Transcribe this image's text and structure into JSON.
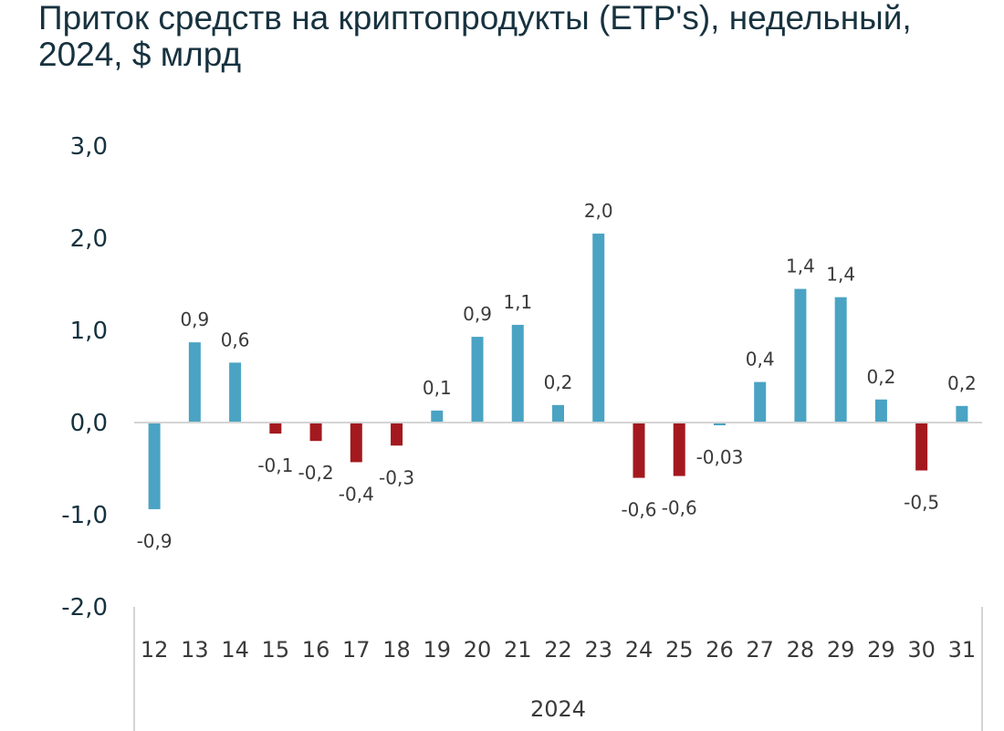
{
  "chart_data": {
    "type": "bar",
    "title": "Приток средств на криптопродукты (ETP's), недельный, 2024, $ млрд",
    "categories": [
      "12",
      "13",
      "14",
      "15",
      "16",
      "17",
      "18",
      "19",
      "20",
      "21",
      "22",
      "23",
      "24",
      "25",
      "26",
      "27",
      "28",
      "29",
      "29",
      "30",
      "31"
    ],
    "group_label": "2024",
    "values": [
      -0.94,
      0.87,
      0.65,
      -0.12,
      -0.2,
      -0.43,
      -0.25,
      0.13,
      0.93,
      1.06,
      0.19,
      2.05,
      -0.6,
      -0.58,
      -0.03,
      0.44,
      1.45,
      1.36,
      0.25,
      -0.52,
      0.18
    ],
    "data_labels": [
      "-0,9",
      "0,9",
      "0,6",
      "-0,1",
      "-0,2",
      "-0,4",
      "-0,3",
      "0,1",
      "0,9",
      "1,1",
      "0,2",
      "2,0",
      "-0,6",
      "-0,6",
      "-0,03",
      "0,4",
      "1,4",
      "1,4",
      "0,2",
      "-0,5",
      "0,2"
    ],
    "colors": [
      "#4aa3c3",
      "#4aa3c3",
      "#4aa3c3",
      "#a3191f",
      "#a3191f",
      "#a3191f",
      "#a3191f",
      "#4aa3c3",
      "#4aa3c3",
      "#4aa3c3",
      "#4aa3c3",
      "#4aa3c3",
      "#a3191f",
      "#a3191f",
      "#4aa3c3",
      "#4aa3c3",
      "#4aa3c3",
      "#4aa3c3",
      "#4aa3c3",
      "#a3191f",
      "#4aa3c3"
    ],
    "yticks": [
      3,
      2,
      1,
      0,
      -1,
      -2
    ],
    "ytick_labels": [
      "3,0",
      "2,0",
      "1,0",
      "0,0",
      "-1,0",
      "-2,0"
    ],
    "ylim": [
      -2,
      3
    ],
    "grid": false,
    "xlabel": "",
    "ylabel": ""
  }
}
